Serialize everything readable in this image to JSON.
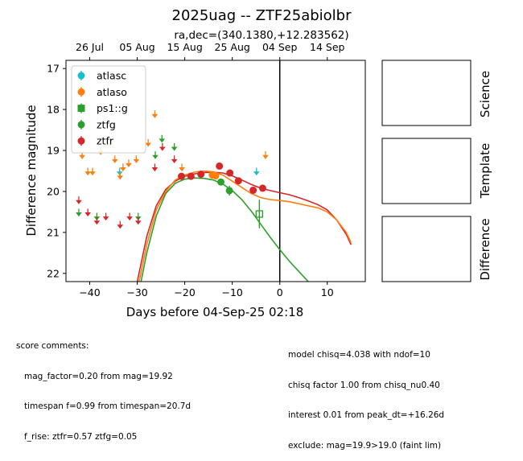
{
  "chart_data": {
    "type": "scatter",
    "title": "2025uag -- ZTF25abiolbr",
    "subtitle": "ra,dec=(340.1380,+12.283562)",
    "xlabel": "Days before 04-Sep-25 02:18",
    "ylabel": "Difference magnitude",
    "xlim": [
      -45,
      18
    ],
    "ylim": [
      22.2,
      16.8
    ],
    "y_inverted": true,
    "xticks": [
      -40,
      -30,
      -20,
      -10,
      0,
      10
    ],
    "yticks": [
      17,
      18,
      19,
      20,
      21,
      22
    ],
    "top_axis_ticks": [
      {
        "label": "26 Jul",
        "x": -40
      },
      {
        "label": "05 Aug",
        "x": -30
      },
      {
        "label": "15 Aug",
        "x": -20
      },
      {
        "label": "25 Aug",
        "x": -10
      },
      {
        "label": "04 Sep",
        "x": 0
      },
      {
        "label": "14 Sep",
        "x": 10
      }
    ],
    "vline_x": 0,
    "legend": {
      "placement": "top-left"
    },
    "series": [
      {
        "name": "atlasc",
        "color": "#17becf",
        "marker": "circle",
        "points": [],
        "upper_limits": [
          [
            -33.7,
            19.5
          ],
          [
            -4.9,
            19.5
          ]
        ]
      },
      {
        "name": "atlaso",
        "color": "#ff7f0e",
        "marker": "circle",
        "points": [
          [
            -14.2,
            19.6,
            0.05
          ],
          [
            -13.5,
            19.62,
            0.05
          ]
        ],
        "upper_limits": [
          [
            -41.6,
            19.1
          ],
          [
            -40.4,
            19.5
          ],
          [
            -39.4,
            19.5
          ],
          [
            -37.7,
            19.0
          ],
          [
            -35.8,
            18.8
          ],
          [
            -34.7,
            19.2
          ],
          [
            -33.6,
            19.6
          ],
          [
            -33.0,
            19.4
          ],
          [
            -31.8,
            19.3
          ],
          [
            -30.2,
            19.2
          ],
          [
            -27.7,
            18.8
          ],
          [
            -26.3,
            18.1
          ],
          [
            -20.6,
            19.4
          ],
          [
            -3.0,
            19.1
          ]
        ]
      },
      {
        "name": "ps1::g",
        "color": "#2ca02c",
        "marker": "square-open",
        "points": [
          [
            -4.3,
            20.55,
            0.35
          ]
        ],
        "upper_limits": []
      },
      {
        "name": "ztfg",
        "color": "#2ca02c",
        "marker": "circle",
        "points": [
          [
            -12.4,
            19.77,
            0.08
          ],
          [
            -10.6,
            19.98,
            0.12
          ]
        ],
        "upper_limits": [
          [
            -42.3,
            20.5
          ],
          [
            -38.5,
            20.6
          ],
          [
            -26.2,
            19.1
          ],
          [
            -24.8,
            18.7
          ],
          [
            -22.2,
            18.9
          ],
          [
            -29.8,
            20.6
          ]
        ]
      },
      {
        "name": "ztfr",
        "color": "#d62728",
        "marker": "circle",
        "points": [
          [
            -20.7,
            19.63,
            0.06
          ],
          [
            -18.7,
            19.63,
            0.06
          ],
          [
            -16.6,
            19.58,
            0.06
          ],
          [
            -12.7,
            19.38,
            0.06
          ],
          [
            -10.5,
            19.55,
            0.06
          ],
          [
            -8.7,
            19.74,
            0.06
          ],
          [
            -5.6,
            19.97,
            0.07
          ],
          [
            -3.6,
            19.92,
            0.08
          ]
        ],
        "upper_limits": [
          [
            -42.3,
            20.2
          ],
          [
            -40.4,
            20.5
          ],
          [
            -38.5,
            20.7
          ],
          [
            -36.6,
            20.6
          ],
          [
            -33.6,
            20.8
          ],
          [
            -31.6,
            20.6
          ],
          [
            -29.8,
            20.7
          ],
          [
            -26.3,
            19.4
          ],
          [
            -24.7,
            18.9
          ],
          [
            -22.2,
            19.2
          ]
        ]
      }
    ],
    "model_curves": [
      {
        "band": "ztfr",
        "color": "#d62728",
        "points": [
          [
            -30,
            22.2
          ],
          [
            -28,
            21.1
          ],
          [
            -26,
            20.35
          ],
          [
            -24,
            19.95
          ],
          [
            -22,
            19.75
          ],
          [
            -20,
            19.63
          ],
          [
            -18,
            19.57
          ],
          [
            -16,
            19.54
          ],
          [
            -14,
            19.53
          ],
          [
            -12,
            19.55
          ],
          [
            -10,
            19.62
          ],
          [
            -8,
            19.72
          ],
          [
            -6,
            19.83
          ],
          [
            -4,
            19.92
          ],
          [
            -2,
            19.98
          ],
          [
            0,
            20.03
          ],
          [
            2,
            20.08
          ],
          [
            4,
            20.15
          ],
          [
            6,
            20.23
          ],
          [
            8,
            20.32
          ],
          [
            10,
            20.45
          ],
          [
            12,
            20.7
          ],
          [
            14,
            21.05
          ],
          [
            15,
            21.3
          ]
        ]
      },
      {
        "band": "atlaso",
        "color": "#ff7f0e",
        "points": [
          [
            -29.6,
            22.2
          ],
          [
            -28,
            21.3
          ],
          [
            -26,
            20.45
          ],
          [
            -24,
            20.0
          ],
          [
            -22,
            19.72
          ],
          [
            -20,
            19.6
          ],
          [
            -18,
            19.53
          ],
          [
            -16,
            19.5
          ],
          [
            -14,
            19.52
          ],
          [
            -12,
            19.6
          ],
          [
            -10,
            19.75
          ],
          [
            -8,
            19.9
          ],
          [
            -6,
            20.05
          ],
          [
            -4,
            20.15
          ],
          [
            -2,
            20.2
          ],
          [
            0,
            20.22
          ],
          [
            2,
            20.25
          ],
          [
            4,
            20.3
          ],
          [
            6,
            20.35
          ],
          [
            8,
            20.4
          ],
          [
            10,
            20.5
          ],
          [
            12,
            20.7
          ],
          [
            14,
            21.0
          ],
          [
            15,
            21.25
          ]
        ]
      },
      {
        "band": "ztfg",
        "color": "#2ca02c",
        "points": [
          [
            -29.2,
            22.2
          ],
          [
            -28,
            21.5
          ],
          [
            -26,
            20.6
          ],
          [
            -24,
            20.05
          ],
          [
            -22,
            19.8
          ],
          [
            -20,
            19.7
          ],
          [
            -18,
            19.67
          ],
          [
            -16,
            19.68
          ],
          [
            -14,
            19.72
          ],
          [
            -12,
            19.82
          ],
          [
            -10,
            19.98
          ],
          [
            -8,
            20.2
          ],
          [
            -6,
            20.48
          ],
          [
            -4,
            20.8
          ],
          [
            -2,
            21.12
          ],
          [
            0,
            21.42
          ],
          [
            2,
            21.7
          ],
          [
            4,
            21.95
          ],
          [
            6,
            22.2
          ]
        ]
      }
    ]
  },
  "side_panels": [
    "Science",
    "Template",
    "Difference"
  ],
  "comments_left": [
    "score comments:",
    "   mag_factor=0.20 from mag=19.92",
    "   timespan f=0.99 from timespan=20.7d",
    "   f_rise: ztfr=0.57 ztfg=0.05"
  ],
  "comments_right": [
    "model chisq=4.038 with ndof=10",
    "chisq factor 1.00 from chisq_nu0.40",
    "interest 0.01 from peak_dt=+16.26d",
    "exclude: mag=19.9>19.0 (faint lim)"
  ]
}
